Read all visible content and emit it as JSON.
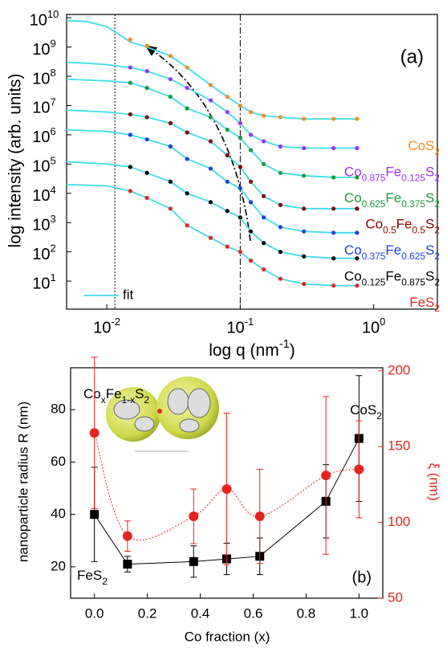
{
  "chart_data": [
    {
      "type": "line",
      "xscale": "log",
      "yscale": "log",
      "xlabel": "log q (nm-1)",
      "ylabel": "log intensity (arb. units)",
      "annotation": "(a)",
      "xlim": [
        0.005,
        3
      ],
      "ylim": [
        1.1,
        13000000000.0
      ],
      "xticks": [
        {
          "value": 0.01,
          "label": "10",
          "sup": "-2"
        },
        {
          "value": 0.1,
          "label": "10",
          "sup": "-1"
        },
        {
          "value": 1,
          "label": "10",
          "sup": "0"
        }
      ],
      "yticks": [
        {
          "value": 10,
          "label": "10",
          "sup": "1"
        },
        {
          "value": 100,
          "label": "10",
          "sup": "2"
        },
        {
          "value": 1000,
          "label": "10",
          "sup": "3"
        },
        {
          "value": 10000,
          "label": "10",
          "sup": "4"
        },
        {
          "value": 100000,
          "label": "10",
          "sup": "5"
        },
        {
          "value": 1000000,
          "label": "10",
          "sup": "6"
        },
        {
          "value": 10000000,
          "label": "10",
          "sup": "7"
        },
        {
          "value": 100000000,
          "label": "10",
          "sup": "8"
        },
        {
          "value": 1000000000,
          "label": "10",
          "sup": "9"
        },
        {
          "value": 10000000000,
          "label": "10",
          "sup": "10"
        }
      ],
      "vlines": [
        {
          "x": 0.0115,
          "style": "dotted"
        },
        {
          "x": 0.1,
          "style": "dashdot"
        }
      ],
      "x": [
        0.005,
        0.007,
        0.01,
        0.015,
        0.02,
        0.03,
        0.04,
        0.06,
        0.08,
        0.1,
        0.12,
        0.15,
        0.2,
        0.3,
        0.5,
        0.75
      ],
      "fit": {
        "name": "fit",
        "color": "#3fdce8",
        "values": [
          [
            8000000000.0,
            7500000000.0,
            5000000000.0,
            1500000000.0,
            1000000000.0,
            500000000.0,
            200000000.0,
            50000000.0,
            20000000.0,
            10000000.0,
            6000000.0,
            4500000.0,
            4000000.0,
            3500000.0,
            3500000.0,
            3500000.0
          ],
          [
            300000000.0,
            280000000.0,
            250000000.0,
            200000000.0,
            150000000.0,
            80000000.0,
            40000000.0,
            15000000.0,
            6000000.0,
            2500000.0,
            1000000.0,
            600000.0,
            400000.0,
            350000.0,
            350000.0,
            350000.0
          ],
          [
            80000000.0,
            75000000.0,
            70000000.0,
            60000000.0,
            40000000.0,
            20000000.0,
            8000000.0,
            4000000.0,
            1500000.0,
            800000.0,
            300000.0,
            100000.0,
            50000.0,
            40000.0,
            35000.0,
            35000.0
          ],
          [
            7000000.0,
            6500000.0,
            6000000.0,
            5000000.0,
            4000000.0,
            2500000.0,
            1200000.0,
            600000.0,
            200000.0,
            80000.0,
            25000.0,
            8000.0,
            4000.0,
            3000.0,
            3000.0,
            3000.0
          ],
          [
            1500000.0,
            1400000.0,
            1300000.0,
            1000000.0,
            700000.0,
            400000.0,
            150000.0,
            70000.0,
            25000.0,
            15000.0,
            5000.0,
            1500.0,
            700,
            500,
            450,
            450
          ],
          [
            120000.0,
            110000.0,
            100000.0,
            80000.0,
            50000.0,
            25000.0,
            10000.0,
            5000.0,
            2500.0,
            1500.0,
            500,
            200,
            100,
            70,
            60,
            60
          ],
          [
            20000.0,
            19000.0,
            18000.0,
            12000.0,
            7000.0,
            3000.0,
            800,
            300,
            150,
            100,
            50,
            25,
            12,
            8,
            7,
            7
          ]
        ]
      },
      "series": [
        {
          "name": "CoS2",
          "color": "#f28c1e",
          "values": [
            null,
            null,
            null,
            1800000000.0,
            1100000000.0,
            500000000.0,
            200000000.0,
            50000000.0,
            20000000.0,
            10000000.0,
            6000000.0,
            4500000.0,
            4000000.0,
            3500000.0,
            3500000.0,
            3500000.0
          ]
        },
        {
          "name": "Co0.875Fe0.125S2",
          "color": "#9b30ff",
          "values": [
            null,
            null,
            null,
            200000000.0,
            150000000.0,
            80000000.0,
            40000000.0,
            15000000.0,
            6000000.0,
            2500000.0,
            1000000.0,
            600000.0,
            400000.0,
            350000.0,
            350000.0,
            350000.0
          ]
        },
        {
          "name": "Co0.625Fe0.375S2",
          "color": "#1a9a3a",
          "values": [
            null,
            null,
            null,
            60000000.0,
            40000000.0,
            20000000.0,
            8000000.0,
            4000000.0,
            1500000.0,
            800000.0,
            300000.0,
            100000.0,
            50000.0,
            40000.0,
            35000.0,
            35000.0
          ]
        },
        {
          "name": "Co0.5Fe0.5S2",
          "color": "#8b0000",
          "values": [
            null,
            null,
            null,
            5000000.0,
            4000000.0,
            2500000.0,
            1200000.0,
            600000.0,
            200000.0,
            80000.0,
            25000.0,
            8000.0,
            4000.0,
            3000.0,
            3000.0,
            3000.0
          ]
        },
        {
          "name": "Co0.375Fe0.625S2",
          "color": "#1f3fe0",
          "values": [
            null,
            null,
            null,
            1000000.0,
            700000.0,
            400000.0,
            150000.0,
            70000.0,
            25000.0,
            15000.0,
            5000.0,
            1500.0,
            700,
            500,
            450,
            450
          ]
        },
        {
          "name": "Co0.125Fe0.875S2",
          "color": "#000000",
          "values": [
            null,
            null,
            null,
            80000.0,
            50000.0,
            25000.0,
            10000.0,
            5000.0,
            2500.0,
            1500.0,
            500,
            200,
            100,
            70,
            60,
            60
          ]
        },
        {
          "name": "FeS2",
          "color": "#e8231e",
          "values": [
            null,
            null,
            null,
            12000.0,
            7000.0,
            3000.0,
            800,
            300,
            150,
            100,
            50,
            25,
            12,
            8,
            7,
            7
          ]
        }
      ]
    },
    {
      "type": "scatter",
      "xlabel": "Co fraction (x)",
      "ylabel": "nanoparticle radius R (nm)",
      "y2label": "ξ (nm)",
      "annotations": [
        "CoxFe1-xS2",
        "FeS2",
        "CoS2",
        "(b)"
      ],
      "xlim": [
        -0.09,
        1.09
      ],
      "ylim": [
        8,
        96
      ],
      "y2lim": [
        50,
        202
      ],
      "xticks": [
        {
          "value": 0,
          "label": "0.0"
        },
        {
          "value": 0.2,
          "label": "0.2"
        },
        {
          "value": 0.4,
          "label": "0.4"
        },
        {
          "value": 0.6,
          "label": "0.6"
        },
        {
          "value": 0.8,
          "label": "0.8"
        },
        {
          "value": 1,
          "label": "1.0"
        }
      ],
      "yticks": [
        20,
        40,
        60,
        80
      ],
      "y2ticks": [
        50,
        100,
        150,
        200
      ],
      "y2color": "#e8231e",
      "x": [
        0,
        0.125,
        0.375,
        0.5,
        0.625,
        0.875,
        1
      ],
      "series": [
        {
          "color": "#000000",
          "marker": "square",
          "values": [
            40,
            21,
            22,
            23,
            24,
            45,
            69
          ],
          "errors": [
            18,
            3,
            6,
            6,
            7,
            14,
            24
          ]
        },
        {
          "color": "#e8231e",
          "marker": "circle",
          "axis": "y2",
          "values": [
            159,
            91,
            104,
            122,
            104,
            131,
            135
          ],
          "errors": [
            50,
            10,
            18,
            50,
            31,
            52,
            32
          ]
        }
      ]
    }
  ]
}
